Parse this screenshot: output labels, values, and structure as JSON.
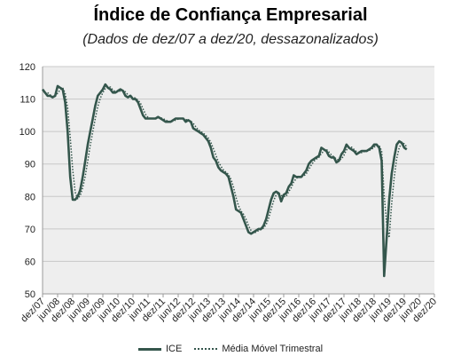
{
  "chart_data": {
    "type": "line",
    "title": "Índice de Confiança Empresarial",
    "subtitle": "(Dados de dez/07 a dez/20, dessazonalizados)",
    "ylim": [
      50,
      120
    ],
    "yticks": [
      50,
      60,
      70,
      80,
      90,
      100,
      110,
      120
    ],
    "xticks": [
      "dez/07",
      "jun/08",
      "dez/08",
      "jun/09",
      "dez/09",
      "jun/10",
      "dez/10",
      "jun/11",
      "dez/11",
      "jun/12",
      "dez/12",
      "jun/13",
      "dez/13",
      "jun/14",
      "dez/14",
      "jun/15",
      "dez/15",
      "jun/16",
      "dez/16",
      "jun/17",
      "dez/17",
      "jun/18",
      "dez/18",
      "jun/19",
      "dez/19",
      "jun/20",
      "dez/20"
    ],
    "grid": true,
    "legend_position": "bottom",
    "series": [
      {
        "name": "ICE",
        "style": "solid",
        "color": "#34564c",
        "points": [
          [
            0,
            113
          ],
          [
            1,
            112
          ],
          [
            2,
            111
          ],
          [
            3,
            111
          ],
          [
            4,
            110.5
          ],
          [
            5,
            111
          ],
          [
            6,
            114
          ],
          [
            7,
            113.5
          ],
          [
            8,
            113
          ],
          [
            9,
            109
          ],
          [
            10,
            100
          ],
          [
            11,
            86
          ],
          [
            12,
            79
          ],
          [
            13,
            79
          ],
          [
            14,
            80
          ],
          [
            15,
            82
          ],
          [
            16,
            86
          ],
          [
            17,
            91
          ],
          [
            18,
            96
          ],
          [
            19,
            100
          ],
          [
            20,
            104
          ],
          [
            21,
            108
          ],
          [
            22,
            111
          ],
          [
            23,
            112
          ],
          [
            24,
            113
          ],
          [
            25,
            114.5
          ],
          [
            26,
            113.5
          ],
          [
            27,
            113
          ],
          [
            28,
            112
          ],
          [
            29,
            112
          ],
          [
            30,
            112.5
          ],
          [
            31,
            113
          ],
          [
            32,
            112.5
          ],
          [
            33,
            111
          ],
          [
            34,
            110.5
          ],
          [
            35,
            111
          ],
          [
            36,
            110
          ],
          [
            37,
            110
          ],
          [
            38,
            109
          ],
          [
            39,
            107
          ],
          [
            40,
            105
          ],
          [
            41,
            104
          ],
          [
            42,
            104
          ],
          [
            43,
            104
          ],
          [
            44,
            104
          ],
          [
            45,
            104
          ],
          [
            46,
            104.5
          ],
          [
            47,
            104
          ],
          [
            48,
            103.5
          ],
          [
            49,
            103
          ],
          [
            50,
            103
          ],
          [
            51,
            103
          ],
          [
            52,
            103.5
          ],
          [
            53,
            104
          ],
          [
            54,
            104
          ],
          [
            55,
            104
          ],
          [
            56,
            104
          ],
          [
            57,
            103
          ],
          [
            58,
            103.5
          ],
          [
            59,
            103
          ],
          [
            60,
            101
          ],
          [
            61,
            100.5
          ],
          [
            62,
            100
          ],
          [
            63,
            99.5
          ],
          [
            64,
            99
          ],
          [
            65,
            98
          ],
          [
            66,
            97
          ],
          [
            67,
            95
          ],
          [
            68,
            92
          ],
          [
            69,
            91
          ],
          [
            70,
            89
          ],
          [
            71,
            88
          ],
          [
            72,
            87.5
          ],
          [
            73,
            87
          ],
          [
            74,
            86
          ],
          [
            75,
            83
          ],
          [
            76,
            80
          ],
          [
            77,
            76
          ],
          [
            78,
            75.5
          ],
          [
            79,
            75
          ],
          [
            80,
            73
          ],
          [
            81,
            71
          ],
          [
            82,
            69
          ],
          [
            83,
            68.5
          ],
          [
            84,
            69
          ],
          [
            85,
            69.5
          ],
          [
            86,
            70
          ],
          [
            87,
            70
          ],
          [
            88,
            71
          ],
          [
            89,
            73
          ],
          [
            90,
            76
          ],
          [
            91,
            79
          ],
          [
            92,
            81
          ],
          [
            93,
            81.5
          ],
          [
            94,
            81
          ],
          [
            95,
            78.5
          ],
          [
            96,
            80.5
          ],
          [
            97,
            81
          ],
          [
            98,
            83
          ],
          [
            99,
            84
          ],
          [
            100,
            86.5
          ],
          [
            101,
            86
          ],
          [
            102,
            86
          ],
          [
            103,
            86
          ],
          [
            104,
            87
          ],
          [
            105,
            88
          ],
          [
            106,
            90
          ],
          [
            107,
            91
          ],
          [
            108,
            91.5
          ],
          [
            109,
            92
          ],
          [
            110,
            92.5
          ],
          [
            111,
            95
          ],
          [
            112,
            94.5
          ],
          [
            113,
            94
          ],
          [
            114,
            92.5
          ],
          [
            115,
            92
          ],
          [
            116,
            92
          ],
          [
            117,
            90.5
          ],
          [
            118,
            91
          ],
          [
            119,
            93
          ],
          [
            120,
            94
          ],
          [
            121,
            96
          ],
          [
            122,
            95
          ],
          [
            123,
            94.5
          ],
          [
            124,
            94
          ],
          [
            125,
            93
          ],
          [
            126,
            93.5
          ],
          [
            127,
            94
          ],
          [
            128,
            94
          ],
          [
            129,
            94
          ],
          [
            130,
            94.5
          ],
          [
            131,
            95
          ],
          [
            132,
            96
          ],
          [
            133,
            96
          ],
          [
            134,
            95
          ],
          [
            135,
            91
          ],
          [
            136,
            55.5
          ],
          [
            137,
            67.5
          ],
          [
            138,
            79
          ],
          [
            139,
            87
          ],
          [
            140,
            92
          ],
          [
            141,
            96
          ],
          [
            142,
            97
          ],
          [
            143,
            96.5
          ],
          [
            144,
            95
          ],
          [
            145,
            94.5
          ]
        ]
      },
      {
        "name": "Média Móvel Trimestral",
        "style": "dotted",
        "color": "#34564c",
        "points": [
          [
            2,
            112
          ],
          [
            3,
            111.3
          ],
          [
            4,
            110.8
          ],
          [
            5,
            110.8
          ],
          [
            6,
            111.8
          ],
          [
            7,
            112.8
          ],
          [
            8,
            113.5
          ],
          [
            9,
            111.8
          ],
          [
            10,
            107.3
          ],
          [
            11,
            98.3
          ],
          [
            12,
            88.3
          ],
          [
            13,
            81.3
          ],
          [
            14,
            79.3
          ],
          [
            15,
            80.3
          ],
          [
            16,
            82.7
          ],
          [
            17,
            86.3
          ],
          [
            18,
            91
          ],
          [
            19,
            95.7
          ],
          [
            20,
            100
          ],
          [
            21,
            104
          ],
          [
            22,
            107.7
          ],
          [
            23,
            110.3
          ],
          [
            24,
            112
          ],
          [
            25,
            113.2
          ],
          [
            26,
            113.7
          ],
          [
            27,
            113.7
          ],
          [
            28,
            112.8
          ],
          [
            29,
            112.3
          ],
          [
            30,
            112.2
          ],
          [
            31,
            112.5
          ],
          [
            32,
            112.7
          ],
          [
            33,
            112.2
          ],
          [
            34,
            111.3
          ],
          [
            35,
            110.8
          ],
          [
            36,
            110.5
          ],
          [
            37,
            110.3
          ],
          [
            38,
            109.7
          ],
          [
            39,
            108.7
          ],
          [
            40,
            107
          ],
          [
            41,
            105.3
          ],
          [
            42,
            104.3
          ],
          [
            43,
            104
          ],
          [
            44,
            104
          ],
          [
            45,
            104
          ],
          [
            46,
            104.2
          ],
          [
            47,
            104.2
          ],
          [
            48,
            104
          ],
          [
            49,
            103.5
          ],
          [
            50,
            103.2
          ],
          [
            51,
            103
          ],
          [
            52,
            103.2
          ],
          [
            53,
            103.5
          ],
          [
            54,
            103.8
          ],
          [
            55,
            104
          ],
          [
            56,
            104
          ],
          [
            57,
            103.7
          ],
          [
            58,
            103.5
          ],
          [
            59,
            103.2
          ],
          [
            60,
            102.5
          ],
          [
            61,
            101.5
          ],
          [
            62,
            100.5
          ],
          [
            63,
            100
          ],
          [
            64,
            99.5
          ],
          [
            65,
            98.8
          ],
          [
            66,
            98
          ],
          [
            67,
            96.7
          ],
          [
            68,
            94.7
          ],
          [
            69,
            92.7
          ],
          [
            70,
            90.7
          ],
          [
            71,
            89.3
          ],
          [
            72,
            88.2
          ],
          [
            73,
            87.5
          ],
          [
            74,
            86.8
          ],
          [
            75,
            85.3
          ],
          [
            76,
            83
          ],
          [
            77,
            79.7
          ],
          [
            78,
            77.2
          ],
          [
            79,
            75.5
          ],
          [
            80,
            74.5
          ],
          [
            81,
            73
          ],
          [
            82,
            71
          ],
          [
            83,
            69.5
          ],
          [
            84,
            68.8
          ],
          [
            85,
            69
          ],
          [
            86,
            69.5
          ],
          [
            87,
            69.8
          ],
          [
            88,
            70.3
          ],
          [
            89,
            71.3
          ],
          [
            90,
            73.3
          ],
          [
            91,
            76
          ],
          [
            92,
            78.7
          ],
          [
            93,
            80.5
          ],
          [
            94,
            81.2
          ],
          [
            95,
            80.3
          ],
          [
            96,
            80
          ],
          [
            97,
            80
          ],
          [
            98,
            81.5
          ],
          [
            99,
            82.7
          ],
          [
            100,
            84.5
          ],
          [
            101,
            85.5
          ],
          [
            102,
            86.2
          ],
          [
            103,
            86
          ],
          [
            104,
            86.3
          ],
          [
            105,
            87
          ],
          [
            106,
            88.3
          ],
          [
            107,
            89.7
          ],
          [
            108,
            90.8
          ],
          [
            109,
            91.5
          ],
          [
            110,
            92
          ],
          [
            111,
            93.2
          ],
          [
            112,
            94
          ],
          [
            113,
            94.5
          ],
          [
            114,
            93.7
          ],
          [
            115,
            92.8
          ],
          [
            116,
            92.2
          ],
          [
            117,
            91.5
          ],
          [
            118,
            91.2
          ],
          [
            119,
            91.5
          ],
          [
            120,
            92.7
          ],
          [
            121,
            94.3
          ],
          [
            122,
            95
          ],
          [
            123,
            95.2
          ],
          [
            124,
            94.5
          ],
          [
            125,
            93.8
          ],
          [
            126,
            93.5
          ],
          [
            127,
            93.5
          ],
          [
            128,
            93.8
          ],
          [
            129,
            94
          ],
          [
            130,
            94.2
          ],
          [
            131,
            94.5
          ],
          [
            132,
            95.2
          ],
          [
            133,
            95.7
          ],
          [
            134,
            95.7
          ],
          [
            135,
            94
          ],
          [
            136,
            80.5
          ],
          [
            137,
            71.3
          ],
          [
            138,
            67.3
          ],
          [
            139,
            77.8
          ],
          [
            140,
            86
          ],
          [
            141,
            91.7
          ],
          [
            142,
            95
          ],
          [
            143,
            96.5
          ],
          [
            144,
            96.2
          ],
          [
            145,
            95.3
          ]
        ]
      }
    ]
  }
}
